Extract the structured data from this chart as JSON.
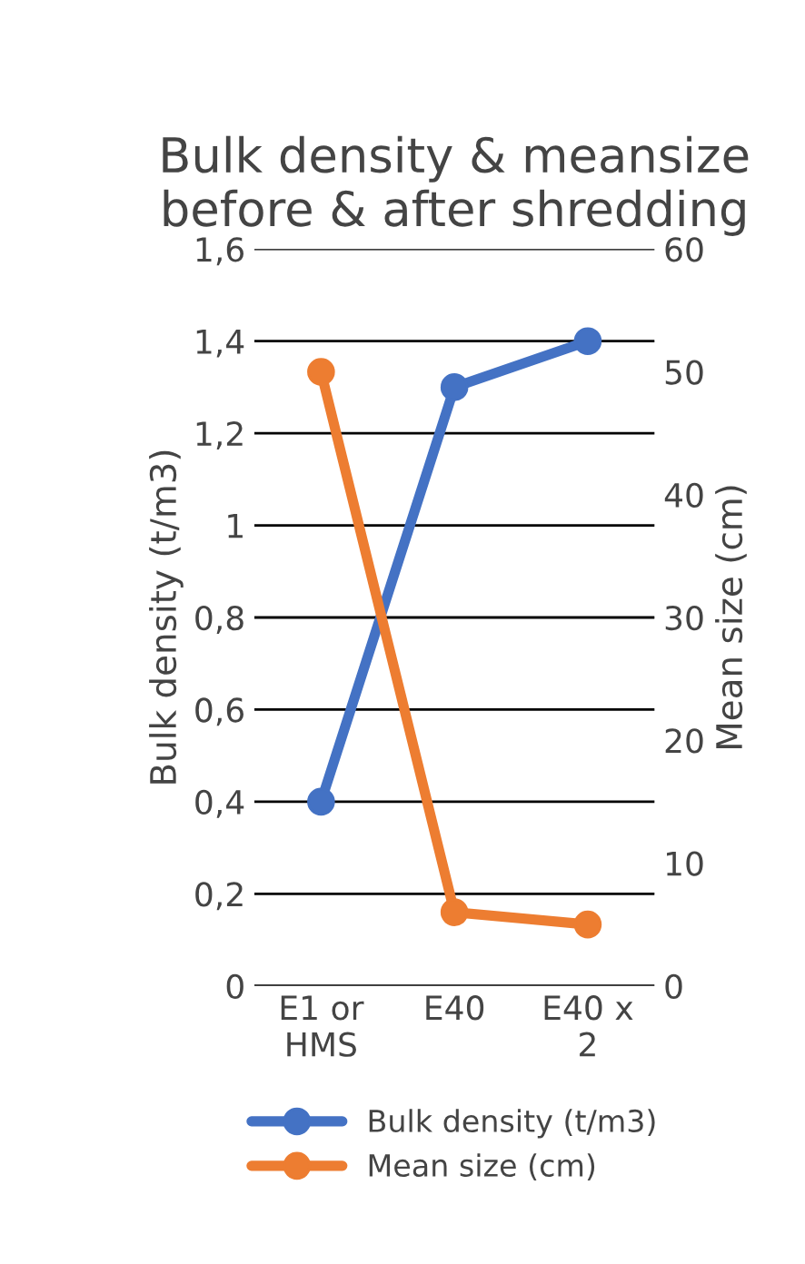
{
  "chart_data": {
    "type": "line",
    "title": "Bulk density & meansize before & after shredding",
    "categories": [
      "E1 or\nHMS",
      "E40",
      "E40 x\n2"
    ],
    "series": [
      {
        "name": "Bulk density (t/m3)",
        "color": "#4472c4",
        "values": [
          0.4,
          1.3,
          1.4
        ]
      },
      {
        "name": "Mean size (cm)",
        "color": "#ed7d31",
        "values": [
          50,
          6,
          5
        ],
        "axis": "y2"
      }
    ],
    "ylabel": "Bulk density (t/m3)",
    "y2label": "Mean size (cm)",
    "ylim": [
      0,
      1.6
    ],
    "yticks": [
      0,
      {
        "value": 0.2,
        "label": "0,2"
      },
      {
        "value": 0.4,
        "label": "0,4"
      },
      {
        "value": 0.6,
        "label": "0,6"
      },
      {
        "value": 0.8,
        "label": "0,8"
      },
      1,
      {
        "value": 1.2,
        "label": "1,2"
      },
      {
        "value": 1.4,
        "label": "1,4"
      },
      {
        "value": 1.6,
        "label": "1,6"
      }
    ],
    "y2lim": [
      0,
      60
    ],
    "y2ticks": [
      0,
      10,
      20,
      30,
      40,
      50,
      60
    ],
    "grid": "y",
    "legend": "bottom",
    "marker": "circle",
    "line_style": "solid"
  }
}
